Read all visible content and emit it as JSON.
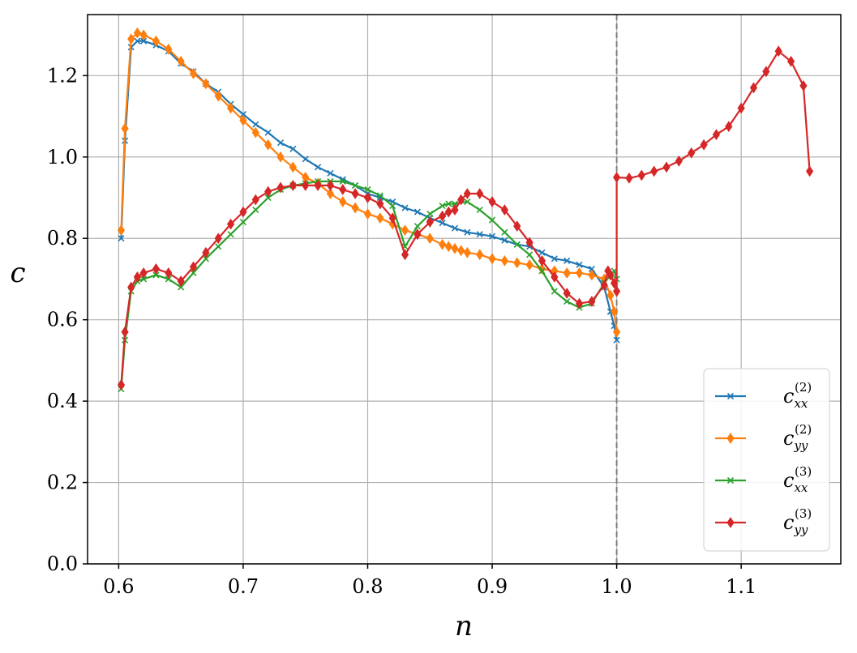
{
  "chart_data": {
    "type": "line",
    "xlabel": "n",
    "ylabel": "c",
    "xlim": [
      0.575,
      1.18
    ],
    "ylim": [
      0.0,
      1.35
    ],
    "xticks": [
      0.6,
      0.7,
      0.8,
      0.9,
      1.0,
      1.1
    ],
    "xtick_labels": [
      "0.6",
      "0.7",
      "0.8",
      "0.9",
      "1.0",
      "1.1"
    ],
    "yticks": [
      0.0,
      0.2,
      0.4,
      0.6,
      0.8,
      1.0,
      1.2
    ],
    "ytick_labels": [
      "0.0",
      "0.2",
      "0.4",
      "0.6",
      "0.8",
      "1.0",
      "1.2"
    ],
    "grid": true,
    "legend_position": "lower-right",
    "vline": {
      "x": 1.0,
      "color": "#808080",
      "style": "dashed"
    },
    "series": [
      {
        "name": "c_xx^(2)",
        "legend_base": "c",
        "legend_sub": "xx",
        "legend_sup": "(2)",
        "color": "#1f77b4",
        "marker": "x",
        "x": [
          0.602,
          0.605,
          0.61,
          0.615,
          0.62,
          0.63,
          0.64,
          0.65,
          0.66,
          0.67,
          0.68,
          0.69,
          0.7,
          0.71,
          0.72,
          0.73,
          0.74,
          0.75,
          0.76,
          0.77,
          0.78,
          0.79,
          0.8,
          0.81,
          0.82,
          0.83,
          0.84,
          0.85,
          0.86,
          0.87,
          0.88,
          0.89,
          0.9,
          0.91,
          0.92,
          0.93,
          0.94,
          0.95,
          0.96,
          0.97,
          0.98,
          0.99,
          0.995,
          0.998,
          1.0
        ],
        "y": [
          0.8,
          1.04,
          1.27,
          1.285,
          1.285,
          1.275,
          1.26,
          1.23,
          1.21,
          1.18,
          1.16,
          1.13,
          1.105,
          1.08,
          1.06,
          1.035,
          1.02,
          0.995,
          0.975,
          0.96,
          0.945,
          0.93,
          0.91,
          0.9,
          0.89,
          0.875,
          0.865,
          0.85,
          0.838,
          0.825,
          0.815,
          0.81,
          0.805,
          0.795,
          0.785,
          0.78,
          0.765,
          0.75,
          0.745,
          0.735,
          0.725,
          0.68,
          0.62,
          0.585,
          0.55
        ]
      },
      {
        "name": "c_yy^(2)",
        "legend_base": "c",
        "legend_sub": "yy",
        "legend_sup": "(2)",
        "color": "#ff7f0e",
        "marker": "diamond",
        "x": [
          0.602,
          0.605,
          0.61,
          0.615,
          0.62,
          0.63,
          0.64,
          0.65,
          0.66,
          0.67,
          0.68,
          0.69,
          0.7,
          0.71,
          0.72,
          0.73,
          0.74,
          0.75,
          0.76,
          0.77,
          0.78,
          0.79,
          0.8,
          0.81,
          0.82,
          0.83,
          0.84,
          0.85,
          0.86,
          0.865,
          0.87,
          0.875,
          0.88,
          0.89,
          0.9,
          0.91,
          0.92,
          0.93,
          0.94,
          0.95,
          0.96,
          0.97,
          0.98,
          0.99,
          0.995,
          0.998,
          1.0
        ],
        "y": [
          0.82,
          1.07,
          1.29,
          1.305,
          1.3,
          1.285,
          1.265,
          1.235,
          1.205,
          1.18,
          1.15,
          1.12,
          1.09,
          1.06,
          1.03,
          1.0,
          0.975,
          0.95,
          0.935,
          0.91,
          0.89,
          0.875,
          0.86,
          0.85,
          0.835,
          0.82,
          0.81,
          0.8,
          0.785,
          0.78,
          0.775,
          0.77,
          0.765,
          0.76,
          0.75,
          0.745,
          0.74,
          0.735,
          0.725,
          0.72,
          0.715,
          0.715,
          0.71,
          0.7,
          0.66,
          0.62,
          0.57
        ]
      },
      {
        "name": "c_xx^(3)",
        "legend_base": "c",
        "legend_sub": "xx",
        "legend_sup": "(3)",
        "color": "#2ca02c",
        "marker": "x",
        "x": [
          0.602,
          0.605,
          0.61,
          0.615,
          0.62,
          0.63,
          0.64,
          0.65,
          0.66,
          0.67,
          0.68,
          0.69,
          0.7,
          0.71,
          0.72,
          0.73,
          0.74,
          0.75,
          0.76,
          0.77,
          0.78,
          0.79,
          0.8,
          0.81,
          0.82,
          0.83,
          0.84,
          0.85,
          0.86,
          0.865,
          0.87,
          0.88,
          0.89,
          0.9,
          0.91,
          0.92,
          0.93,
          0.94,
          0.95,
          0.96,
          0.97,
          0.98,
          0.99,
          0.995,
          0.998,
          1.0
        ],
        "y": [
          0.43,
          0.55,
          0.67,
          0.695,
          0.7,
          0.71,
          0.7,
          0.68,
          0.715,
          0.75,
          0.78,
          0.81,
          0.84,
          0.87,
          0.9,
          0.92,
          0.93,
          0.935,
          0.94,
          0.94,
          0.94,
          0.93,
          0.92,
          0.905,
          0.88,
          0.78,
          0.83,
          0.86,
          0.88,
          0.885,
          0.885,
          0.89,
          0.87,
          0.845,
          0.815,
          0.785,
          0.76,
          0.72,
          0.67,
          0.645,
          0.63,
          0.64,
          0.69,
          0.71,
          0.72,
          0.7
        ]
      },
      {
        "name": "c_yy^(3)",
        "legend_base": "c",
        "legend_sub": "yy",
        "legend_sup": "(3)",
        "color": "#d62728",
        "marker": "diamond",
        "x": [
          0.602,
          0.605,
          0.61,
          0.615,
          0.62,
          0.63,
          0.64,
          0.65,
          0.66,
          0.67,
          0.68,
          0.69,
          0.7,
          0.71,
          0.72,
          0.73,
          0.74,
          0.75,
          0.76,
          0.77,
          0.78,
          0.79,
          0.8,
          0.81,
          0.82,
          0.83,
          0.84,
          0.85,
          0.86,
          0.865,
          0.87,
          0.875,
          0.88,
          0.89,
          0.9,
          0.91,
          0.92,
          0.93,
          0.94,
          0.95,
          0.96,
          0.97,
          0.98,
          0.99,
          0.993,
          0.995,
          0.998,
          1.0,
          1.0,
          1.01,
          1.02,
          1.03,
          1.04,
          1.05,
          1.06,
          1.07,
          1.08,
          1.09,
          1.1,
          1.11,
          1.12,
          1.13,
          1.14,
          1.15,
          1.155
        ],
        "y": [
          0.44,
          0.57,
          0.68,
          0.705,
          0.715,
          0.725,
          0.715,
          0.695,
          0.73,
          0.765,
          0.8,
          0.835,
          0.865,
          0.895,
          0.915,
          0.925,
          0.93,
          0.93,
          0.93,
          0.93,
          0.92,
          0.91,
          0.9,
          0.885,
          0.85,
          0.76,
          0.81,
          0.84,
          0.855,
          0.865,
          0.87,
          0.895,
          0.91,
          0.91,
          0.89,
          0.87,
          0.83,
          0.79,
          0.745,
          0.705,
          0.665,
          0.64,
          0.645,
          0.685,
          0.72,
          0.71,
          0.69,
          0.67,
          0.95,
          0.948,
          0.955,
          0.965,
          0.975,
          0.99,
          1.01,
          1.03,
          1.055,
          1.075,
          1.12,
          1.17,
          1.21,
          1.26,
          1.235,
          1.175,
          0.965
        ]
      }
    ]
  }
}
